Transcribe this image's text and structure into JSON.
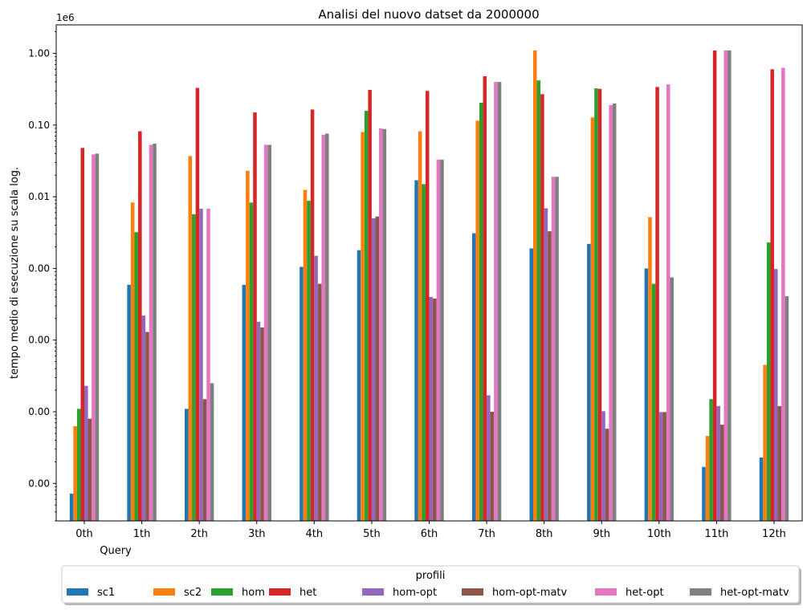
{
  "chart_data": {
    "type": "bar",
    "title": "Analisi del nuovo datset da 2000000",
    "xlabel": "Query",
    "ylabel": "tempo medio di esecuzione su scala log.",
    "offset_label": "1e6",
    "yscale": "log",
    "ylim": [
      3e-07,
      2.5
    ],
    "yticks": [
      1e-06,
      1e-05,
      0.0001,
      0.001,
      0.01,
      0.1,
      1
    ],
    "ytick_labels": [
      "0.00",
      "0.00",
      "0.00",
      "0.00",
      "0.01",
      "0.10",
      "1.00"
    ],
    "categories": [
      "0th",
      "1th",
      "2th",
      "3th",
      "4th",
      "5th",
      "6th",
      "7th",
      "8th",
      "9th",
      "10th",
      "11th",
      "12th"
    ],
    "grid": false,
    "legend": {
      "title": "profili",
      "placement": "bottom-center, below plot",
      "columns": 8
    },
    "series": [
      {
        "name": "sc1",
        "color": "#1f77b4",
        "values": [
          7.2e-07,
          0.00059,
          1.1e-05,
          0.00059,
          0.00105,
          0.0018,
          0.017,
          0.0031,
          0.0019,
          0.0022,
          0.001,
          1.7e-06,
          2.3e-06
        ]
      },
      {
        "name": "sc2",
        "color": "#ff7f0e",
        "values": [
          6.3e-06,
          0.0083,
          0.037,
          0.023,
          0.0125,
          0.08,
          0.082,
          0.115,
          1.1,
          0.128,
          0.0052,
          4.6e-06,
          4.5e-05
        ]
      },
      {
        "name": "hom",
        "color": "#2ca02c",
        "values": [
          1.1e-05,
          0.0032,
          0.0057,
          0.0083,
          0.0088,
          0.158,
          0.015,
          0.205,
          0.42,
          0.325,
          0.00061,
          1.5e-05,
          0.0023
        ]
      },
      {
        "name": "het",
        "color": "#d62728",
        "values": [
          0.048,
          0.082,
          0.33,
          0.15,
          0.165,
          0.31,
          0.3,
          0.48,
          0.27,
          0.32,
          0.34,
          1.1,
          0.6
        ]
      },
      {
        "name": "hom-opt",
        "color": "#9467bd",
        "values": [
          2.3e-05,
          0.00022,
          0.0068,
          0.00018,
          0.0015,
          0.005,
          0.0004,
          1.7e-05,
          0.0069,
          1.02e-05,
          9.9e-06,
          1.2e-05,
          0.00098
        ]
      },
      {
        "name": "hom-opt-matv",
        "color": "#8c564b",
        "values": [
          8e-06,
          0.00013,
          1.5e-05,
          0.00015,
          0.00061,
          0.0053,
          0.00038,
          1e-05,
          0.0033,
          5.8e-06,
          9.9e-06,
          6.6e-06,
          1.2e-05
        ]
      },
      {
        "name": "het-opt",
        "color": "#e377c2",
        "values": [
          0.039,
          0.053,
          0.0068,
          0.053,
          0.073,
          0.09,
          0.033,
          0.4,
          0.019,
          0.19,
          0.37,
          1.1,
          0.63
        ]
      },
      {
        "name": "het-opt-matv",
        "color": "#7f7f7f",
        "values": [
          0.04,
          0.055,
          2.5e-05,
          0.053,
          0.076,
          0.088,
          0.033,
          0.4,
          0.019,
          0.2,
          0.00075,
          1.1,
          0.00041
        ]
      }
    ]
  }
}
